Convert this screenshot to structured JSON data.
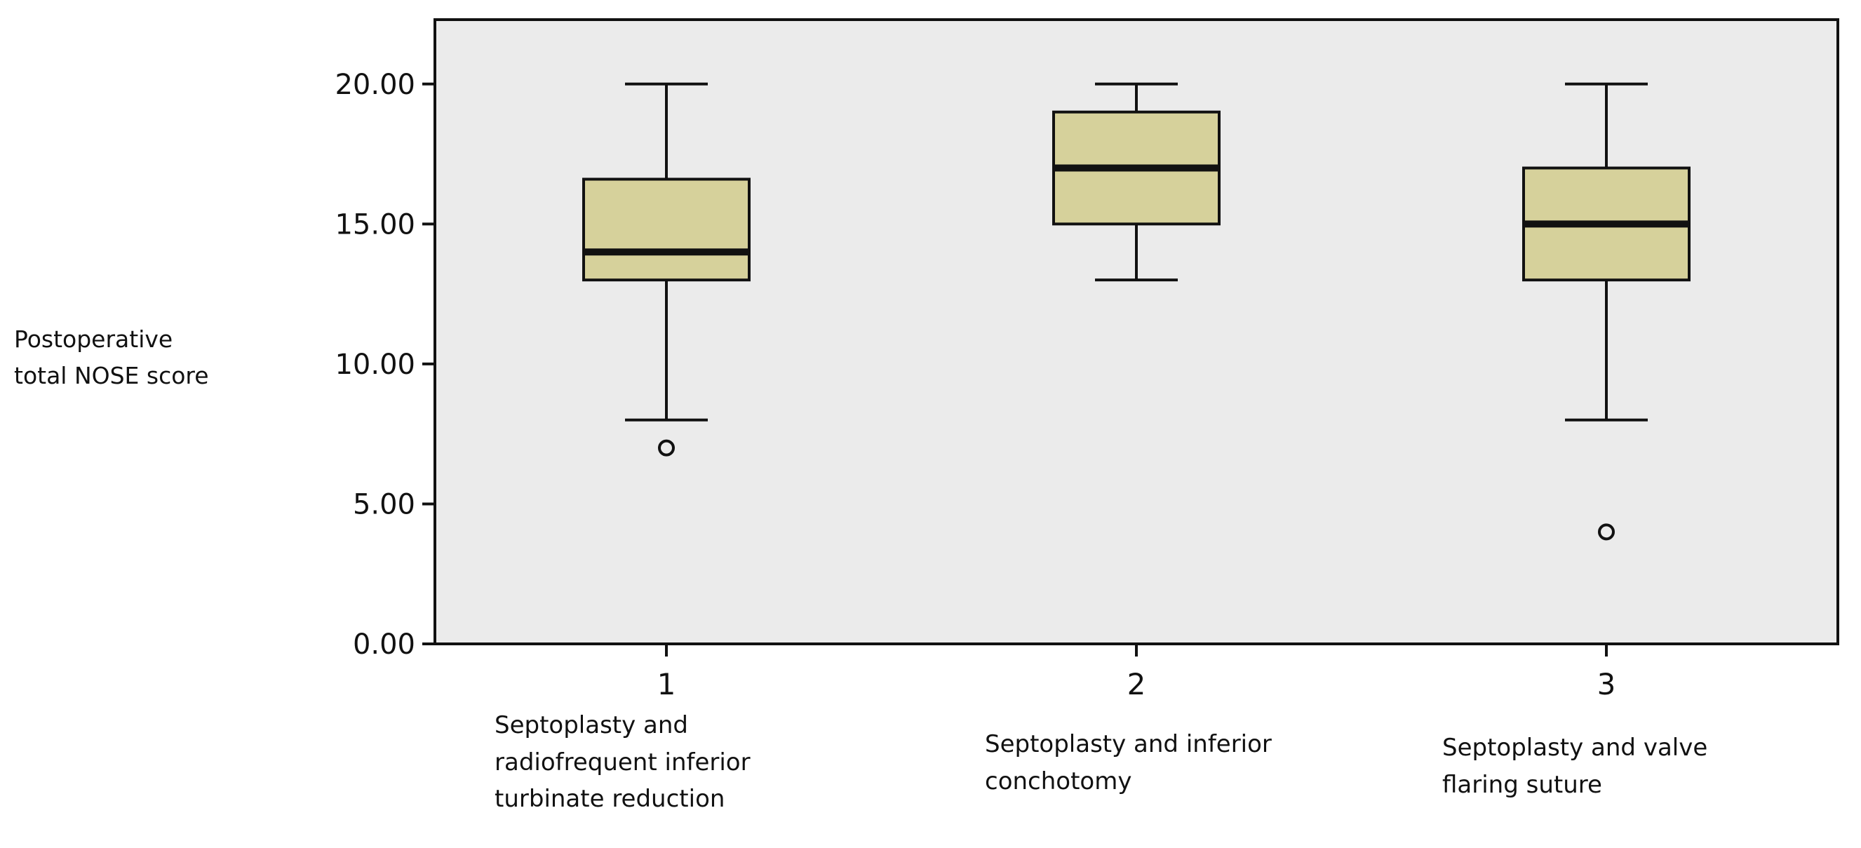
{
  "chart_data": {
    "type": "boxplot",
    "title": "",
    "xlabel": "",
    "ylabel_lines": [
      "Postoperative",
      "total NOSE score"
    ],
    "ylim": [
      0,
      22.3
    ],
    "y_ticks": [
      "0.00",
      "5.00",
      "10.00",
      "15.00",
      "20.00"
    ],
    "y_tick_values": [
      0,
      5,
      10,
      15,
      20
    ],
    "grid": false,
    "plot_background": "#ebebeb",
    "box_fill": "#d6d19b",
    "categories": [
      {
        "tick": "1",
        "label_lines": [
          "Septoplasty and",
          "radiofrequent inferior",
          "turbinate reduction"
        ],
        "min": 8,
        "q1": 13,
        "median": 14,
        "q3": 16.6,
        "max": 20,
        "outliers": [
          7
        ]
      },
      {
        "tick": "2",
        "label_lines": [
          "Septoplasty and inferior",
          "conchotomy"
        ],
        "min": 13,
        "q1": 15,
        "median": 17,
        "q3": 19,
        "max": 20,
        "outliers": []
      },
      {
        "tick": "3",
        "label_lines": [
          "Septoplasty and valve",
          "flaring suture"
        ],
        "min": 8,
        "q1": 13,
        "median": 15,
        "q3": 17,
        "max": 20,
        "outliers": [
          4
        ]
      }
    ]
  }
}
